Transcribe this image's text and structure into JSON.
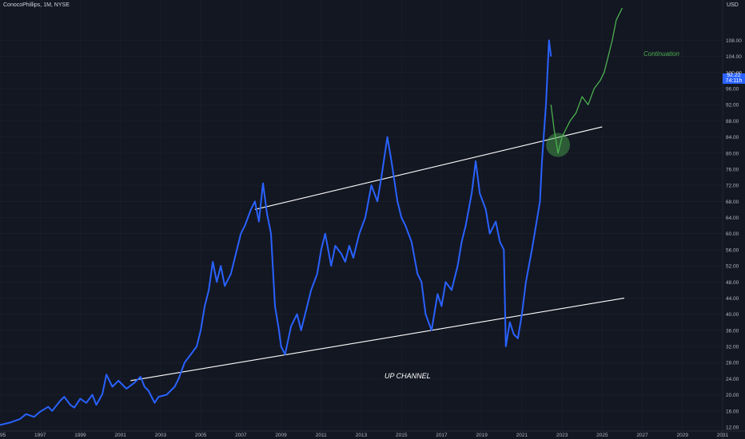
{
  "header": {
    "ticker": "ConocoPhillips, 1M, NYSE",
    "currency": "USD"
  },
  "price_tag": {
    "price": "92.22",
    "countdown": "74:11h"
  },
  "annotations": {
    "continuation": "Continuation",
    "channel": "UP CHANNEL"
  },
  "colors": {
    "background": "#131722",
    "grid": "#1e2230",
    "price_line": "#2962ff",
    "projection": "#4caf50",
    "channel_lines": "#ffffff",
    "marker_circle": "#4caf50",
    "axis_text": "#b2b5be"
  },
  "chart_data": {
    "type": "line",
    "title": "",
    "xlabel": "",
    "ylabel": "",
    "xlim": [
      1995,
      2031
    ],
    "ylim": [
      11,
      118
    ],
    "x_ticks": [
      "1995",
      "1997",
      "1999",
      "2001",
      "2003",
      "2005",
      "2007",
      "2009",
      "2011",
      "2013",
      "2015",
      "2017",
      "2019",
      "2021",
      "2023",
      "2025",
      "2027",
      "2029",
      "2031"
    ],
    "y_ticks": [
      12,
      16,
      20,
      24,
      28,
      32,
      36,
      40,
      44,
      48,
      52,
      56,
      60,
      64,
      68,
      72,
      76,
      80,
      84,
      88,
      92,
      96,
      100,
      104,
      108
    ],
    "grid": true,
    "series": [
      {
        "name": "",
        "style": "blue",
        "x": [
          1995.0,
          1995.5,
          1996.0,
          1996.3,
          1996.7,
          1997.0,
          1997.4,
          1997.6,
          1998.0,
          1998.2,
          1998.5,
          1998.7,
          1999.0,
          1999.3,
          1999.6,
          1999.8,
          2000.1,
          2000.3,
          2000.6,
          2000.9,
          2001.1,
          2001.3,
          2001.7,
          2002.0,
          2002.2,
          2002.4,
          2002.7,
          2002.9,
          2003.3,
          2003.7,
          2003.9,
          2004.2,
          2004.5,
          2004.8,
          2005.0,
          2005.2,
          2005.4,
          2005.6,
          2005.8,
          2006.0,
          2006.2,
          2006.5,
          2006.8,
          2007.0,
          2007.2,
          2007.5,
          2007.7,
          2007.9,
          2008.1,
          2008.3,
          2008.5,
          2008.7,
          2008.9,
          2009.0,
          2009.2,
          2009.5,
          2009.8,
          2010.0,
          2010.3,
          2010.5,
          2010.8,
          2011.0,
          2011.2,
          2011.5,
          2011.7,
          2012.0,
          2012.2,
          2012.4,
          2012.6,
          2012.9,
          2013.2,
          2013.5,
          2013.8,
          2014.0,
          2014.3,
          2014.5,
          2014.8,
          2015.0,
          2015.2,
          2015.5,
          2015.8,
          2016.0,
          2016.2,
          2016.5,
          2016.8,
          2017.0,
          2017.2,
          2017.5,
          2017.8,
          2018.0,
          2018.2,
          2018.5,
          2018.7,
          2018.9,
          2019.2,
          2019.4,
          2019.7,
          2019.9,
          2020.1,
          2020.2,
          2020.4,
          2020.6,
          2020.8,
          2021.0,
          2021.2,
          2021.5,
          2021.7,
          2021.9,
          2022.0,
          2022.2,
          2022.35,
          2022.45
        ],
        "y": [
          12.5,
          13.1,
          14.0,
          15.2,
          14.5,
          15.8,
          17.0,
          16.0,
          18.5,
          19.5,
          17.5,
          16.8,
          19.0,
          18.0,
          20.0,
          17.5,
          20.2,
          25.0,
          22.0,
          23.5,
          22.5,
          21.5,
          23.0,
          24.5,
          22.0,
          21.0,
          18.0,
          19.5,
          20.0,
          22.0,
          24.0,
          28.0,
          30.0,
          32.0,
          36.0,
          42.0,
          46.0,
          53.0,
          48.0,
          52.0,
          47.0,
          50.0,
          56.0,
          60.0,
          62.0,
          66.0,
          68.0,
          63.0,
          72.5,
          65.0,
          60.0,
          42.0,
          36.0,
          32.0,
          30.0,
          37.0,
          40.0,
          36.0,
          42.0,
          46.0,
          50.0,
          56.0,
          60.0,
          52.0,
          57.0,
          55.0,
          53.0,
          57.0,
          54.0,
          60.0,
          64.0,
          72.0,
          68.0,
          74.0,
          84.0,
          78.0,
          68.0,
          64.0,
          62.0,
          58.0,
          50.0,
          48.0,
          40.0,
          36.0,
          45.0,
          42.0,
          48.0,
          46.0,
          52.0,
          58.0,
          62.0,
          70.0,
          78.0,
          70.0,
          66.0,
          60.0,
          63.0,
          58.0,
          56.0,
          32.0,
          38.0,
          35.0,
          34.0,
          40.0,
          48.0,
          56.0,
          62.0,
          68.0,
          78.0,
          92.0,
          108.0,
          104.0
        ]
      },
      {
        "name": "",
        "style": "green",
        "x": [
          2022.45,
          2022.6,
          2022.8,
          2023.0,
          2023.2,
          2023.4,
          2023.7,
          2024.0,
          2024.3,
          2024.6,
          2024.9,
          2025.1,
          2025.3,
          2025.5,
          2025.7,
          2026.0
        ],
        "y": [
          92.0,
          86.0,
          80.0,
          84.0,
          86.0,
          88.0,
          90.0,
          94.0,
          92.0,
          96.0,
          98.0,
          100.0,
          104.0,
          108.0,
          113.0,
          116.0
        ]
      }
    ],
    "channel_lines": [
      {
        "from": [
          2007.7,
          66.0
        ],
        "to": [
          2025.0,
          86.5
        ]
      },
      {
        "from": [
          2001.5,
          23.5
        ],
        "to": [
          2026.1,
          44.0
        ]
      }
    ],
    "marker": {
      "x": 2022.8,
      "y": 82.0
    }
  }
}
